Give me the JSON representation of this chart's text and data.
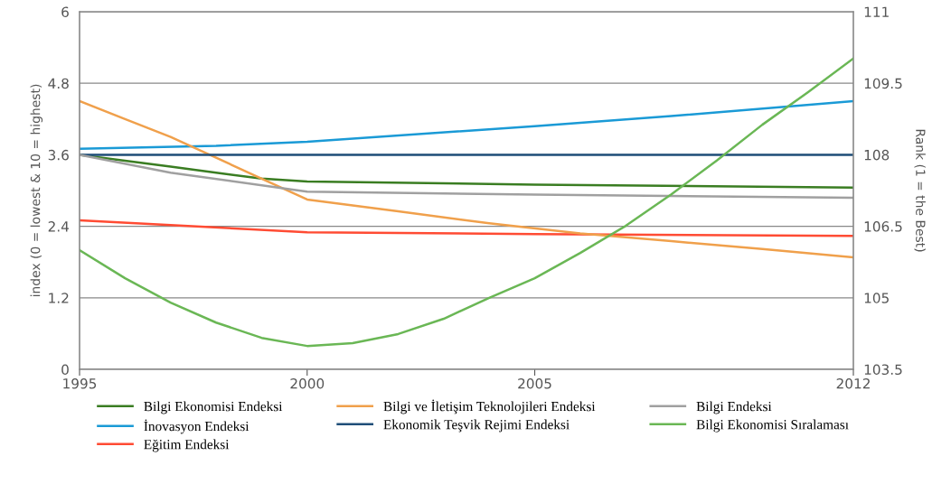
{
  "chart_data": {
    "type": "line",
    "ylabel": "index (0 = lowest & 10 = highest)",
    "y2label": "Rank (1 = the Best)",
    "xlim": [
      1995,
      2012
    ],
    "xticks": [
      1995,
      2000,
      2005,
      2012
    ],
    "ylim": [
      0,
      6
    ],
    "yticks": [
      0,
      1.2,
      2.4,
      3.6,
      4.8,
      6
    ],
    "y2lim": [
      103.5,
      111
    ],
    "y2ticks": [
      103.5,
      105,
      106.5,
      108,
      109.5,
      111
    ],
    "grid": "y",
    "legend": "bottom",
    "marker": "none",
    "line_style": "solid",
    "series": [
      {
        "name": "Bilgi Ekonomisi Endeksi",
        "color": "#3a7d22",
        "x": [
          1995,
          1997,
          1998,
          1999,
          2000,
          2005,
          2012
        ],
        "values": [
          3.6,
          3.4,
          3.3,
          3.2,
          3.15,
          3.1,
          3.05
        ]
      },
      {
        "name": "İnovasyon Endeksi",
        "color": "#1a9ad6",
        "x": [
          1995,
          1998,
          2000,
          2005,
          2008,
          2012
        ],
        "values": [
          3.7,
          3.75,
          3.82,
          4.08,
          4.25,
          4.5
        ]
      },
      {
        "name": "Eğitim Endeksi",
        "color": "#ff4b33",
        "x": [
          1995,
          1997,
          2000,
          2005,
          2012
        ],
        "values": [
          2.5,
          2.42,
          2.3,
          2.27,
          2.24
        ]
      },
      {
        "name": "Bilgi ve İletişim Teknolojileri Endeksi",
        "color": "#f0a04b",
        "x": [
          1995,
          1996,
          1997,
          1998,
          1999,
          2000,
          2002,
          2004,
          2006,
          2008,
          2010,
          2012
        ],
        "values": [
          4.5,
          4.2,
          3.9,
          3.55,
          3.2,
          2.85,
          2.65,
          2.45,
          2.28,
          2.15,
          2.02,
          1.88
        ]
      },
      {
        "name": "Ekonomik Teşvik Rejimi Endeksi",
        "color": "#1f4e79",
        "x": [
          1995,
          2012
        ],
        "values": [
          3.6,
          3.6
        ]
      },
      {
        "name": "Bilgi Endeksi",
        "color": "#a0a0a0",
        "x": [
          1995,
          1997,
          2000,
          2005,
          2012
        ],
        "values": [
          3.6,
          3.3,
          2.98,
          2.93,
          2.88
        ]
      },
      {
        "name": "Bilgi Ekonomisi Sıralaması",
        "color": "#6ab755",
        "axis": "y2",
        "x": [
          1995,
          1996,
          1997,
          1998,
          1999,
          2000,
          2001,
          2002,
          2003,
          2004,
          2005,
          2006,
          2007,
          2008,
          2009,
          2010,
          2011,
          2012
        ],
        "values": [
          106.0,
          105.41,
          104.9,
          104.48,
          104.16,
          103.99,
          104.05,
          104.24,
          104.56,
          105.0,
          105.41,
          105.94,
          106.51,
          107.17,
          107.88,
          108.63,
          109.31,
          110.02
        ]
      }
    ]
  }
}
